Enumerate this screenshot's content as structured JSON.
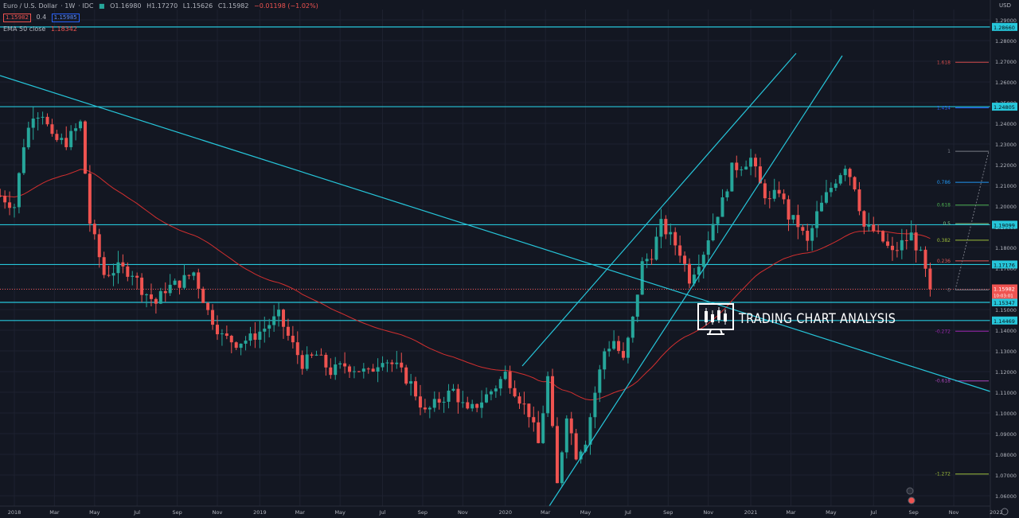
{
  "header": {
    "symbol": "Euro / U.S. Dollar",
    "interval": "1W",
    "source": "IDC",
    "open": "O1.16980",
    "high": "H1.17270",
    "low": "L1.15626",
    "close": "C1.15982",
    "change": "−0.01198 (−1.02%)",
    "bid": "1.15982",
    "spread": "0.4",
    "ask": "1.15985",
    "ema_label": "EMA 50 close",
    "ema_value": "1.18342",
    "currency": "USD"
  },
  "logo_text": "TRADING CHART ANALYSIS",
  "chart_data": {
    "type": "candlestick",
    "yaxis": {
      "min": 1.055,
      "max": 1.295,
      "ticks": [
        1.06,
        1.07,
        1.08,
        1.09,
        1.1,
        1.11,
        1.12,
        1.13,
        1.14,
        1.15,
        1.16,
        1.17,
        1.18,
        1.19,
        1.2,
        1.21,
        1.22,
        1.23,
        1.24,
        1.25,
        1.26,
        1.27,
        1.28,
        1.29
      ]
    },
    "xaxis": {
      "labels": [
        "2018",
        "Mar",
        "May",
        "Jul",
        "Sep",
        "Nov",
        "2019",
        "Mar",
        "May",
        "Jul",
        "Sep",
        "Nov",
        "2020",
        "Mar",
        "May",
        "Jul",
        "Sep",
        "Nov",
        "2021",
        "Mar",
        "May",
        "Jul",
        "Sep",
        "Nov",
        "2022"
      ],
      "label_weeks": [
        0,
        8.5,
        17,
        26,
        34.5,
        43,
        52,
        60.5,
        69,
        78,
        86.5,
        95,
        104,
        112.5,
        121,
        130,
        138.5,
        147,
        156,
        164.5,
        173,
        182,
        190.5,
        199,
        208
      ]
    },
    "candles": [],
    "price_levels": [
      {
        "label": "1.28660",
        "value": 1.2866
      },
      {
        "label": "1.24805",
        "value": 1.24805
      },
      {
        "label": "1.19099",
        "value": 1.19099
      },
      {
        "label": "1.17176",
        "value": 1.17176
      },
      {
        "label": "1.15347",
        "value": 1.15347
      },
      {
        "label": "1.14469",
        "value": 1.14469
      }
    ],
    "current_price": {
      "label": "1.15982",
      "value": 1.15982,
      "countdown": "10:03:01"
    },
    "fib_levels": [
      {
        "label": "1.618",
        "value": 1.2695,
        "color": "#d14a4a"
      },
      {
        "label": "1.414",
        "value": 1.2475,
        "color": "#2962ff"
      },
      {
        "label": "1",
        "value": 1.2265,
        "color": "#787b86"
      },
      {
        "label": "0.786",
        "value": 1.2115,
        "color": "#2196f3"
      },
      {
        "label": "0.618",
        "value": 1.2005,
        "color": "#4caf50"
      },
      {
        "label": "0.5",
        "value": 1.1915,
        "color": "#81c784"
      },
      {
        "label": "0.382",
        "value": 1.1835,
        "color": "#9bbb3a"
      },
      {
        "label": "0.236",
        "value": 1.1735,
        "color": "#e05a5a"
      },
      {
        "label": "0",
        "value": 1.1595,
        "color": "#787b86"
      },
      {
        "label": "-0.272",
        "value": 1.1395,
        "color": "#9c27b0"
      },
      {
        "label": "-0.618",
        "value": 1.1155,
        "color": "#ab47bc"
      },
      {
        "label": "-1.272",
        "value": 1.0705,
        "color": "#9bbb3a"
      }
    ],
    "colors": {
      "up": "#26a69a",
      "down": "#ef5350",
      "line": "#26c6da",
      "ema": "#d32f2f",
      "bg": "#131722",
      "grid": "#1e2230"
    }
  }
}
